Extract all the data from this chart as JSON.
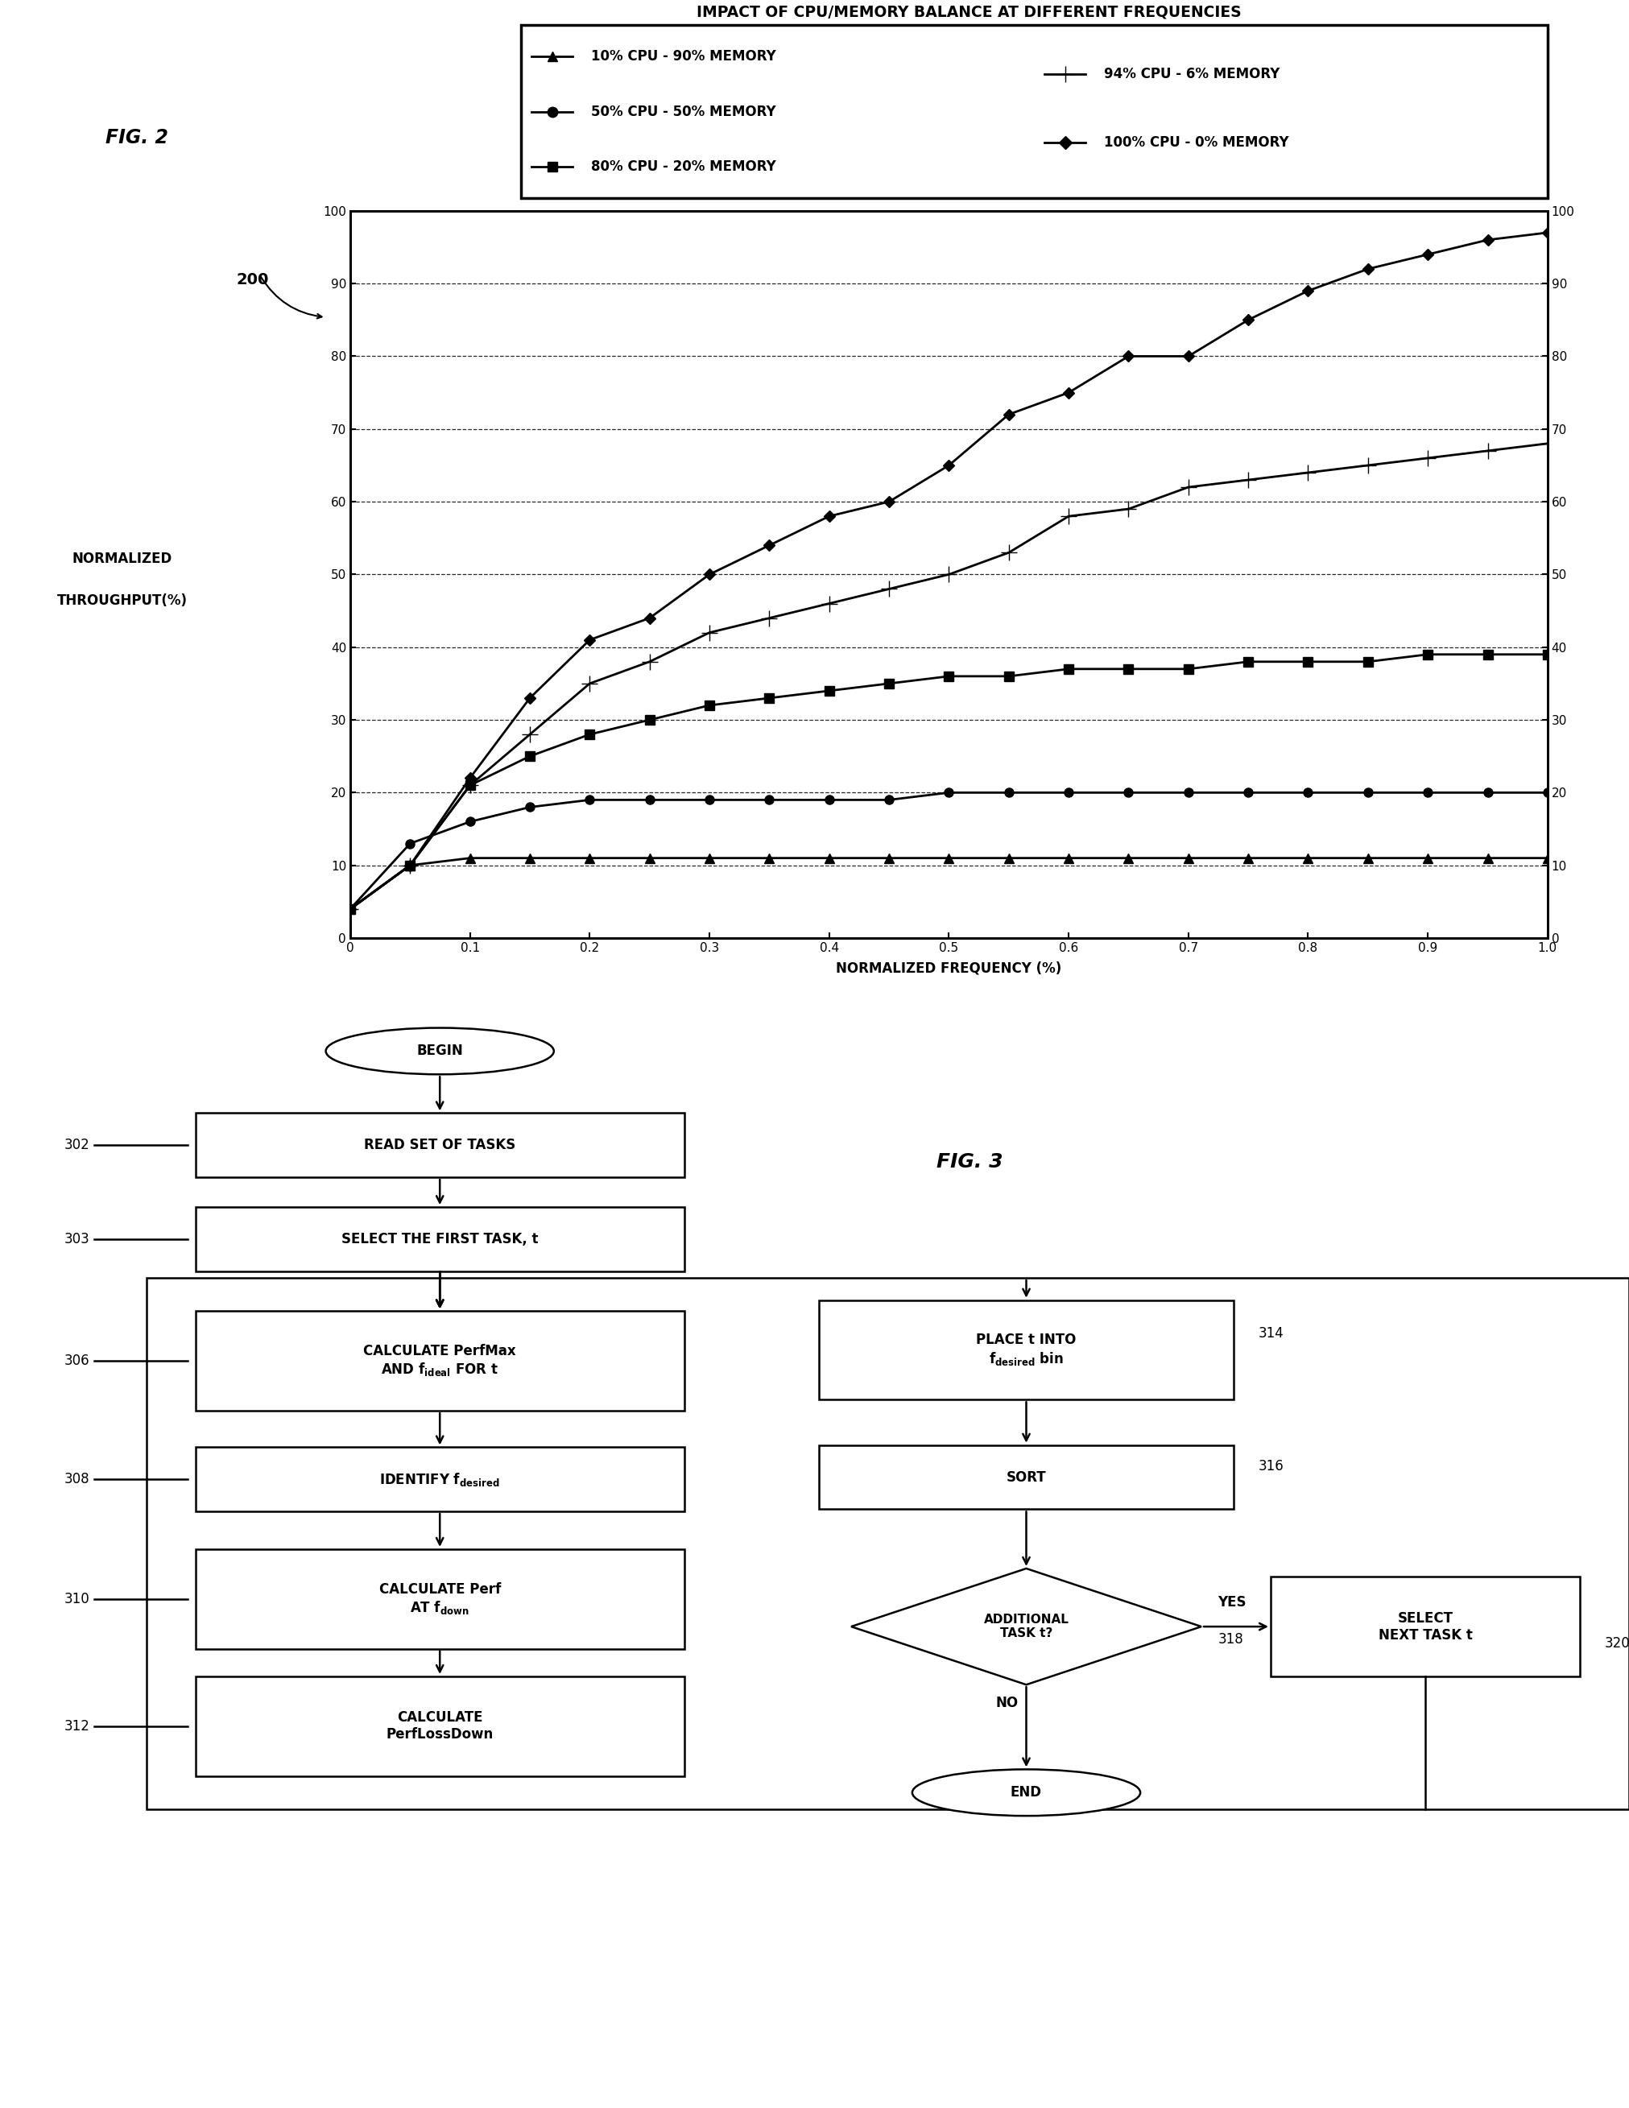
{
  "title": "IMPACT OF CPU/MEMORY BALANCE AT DIFFERENT FREQUENCIES",
  "xlabel": "NORMALIZED FREQUENCY (%)",
  "ylabel_top": "NORMALIZED",
  "ylabel_bot": "THROUGHPUT(%)",
  "xlim": [
    0,
    1.0
  ],
  "ylim": [
    0,
    100
  ],
  "xticks": [
    0,
    0.1,
    0.2,
    0.3,
    0.4,
    0.5,
    0.6,
    0.7,
    0.8,
    0.9,
    1.0
  ],
  "yticks": [
    0,
    10,
    20,
    30,
    40,
    50,
    60,
    70,
    80,
    90,
    100
  ],
  "series": [
    {
      "label": "10% CPU - 90% MEMORY",
      "marker": "^",
      "x": [
        0,
        0.05,
        0.1,
        0.15,
        0.2,
        0.25,
        0.3,
        0.35,
        0.4,
        0.45,
        0.5,
        0.55,
        0.6,
        0.65,
        0.7,
        0.75,
        0.8,
        0.85,
        0.9,
        0.95,
        1.0
      ],
      "y": [
        4,
        10,
        11,
        11,
        11,
        11,
        11,
        11,
        11,
        11,
        11,
        11,
        11,
        11,
        11,
        11,
        11,
        11,
        11,
        11,
        11
      ]
    },
    {
      "label": "50% CPU - 50% MEMORY",
      "marker": "o",
      "x": [
        0,
        0.05,
        0.1,
        0.15,
        0.2,
        0.25,
        0.3,
        0.35,
        0.4,
        0.45,
        0.5,
        0.55,
        0.6,
        0.65,
        0.7,
        0.75,
        0.8,
        0.85,
        0.9,
        0.95,
        1.0
      ],
      "y": [
        4,
        13,
        16,
        18,
        19,
        19,
        19,
        19,
        19,
        19,
        20,
        20,
        20,
        20,
        20,
        20,
        20,
        20,
        20,
        20,
        20
      ]
    },
    {
      "label": "80% CPU - 20% MEMORY",
      "marker": "s",
      "x": [
        0,
        0.05,
        0.1,
        0.15,
        0.2,
        0.25,
        0.3,
        0.35,
        0.4,
        0.45,
        0.5,
        0.55,
        0.6,
        0.65,
        0.7,
        0.75,
        0.8,
        0.85,
        0.9,
        0.95,
        1.0
      ],
      "y": [
        4,
        10,
        21,
        25,
        28,
        30,
        32,
        33,
        34,
        35,
        36,
        36,
        37,
        37,
        37,
        38,
        38,
        38,
        39,
        39,
        39
      ]
    },
    {
      "label": "94% CPU - 6% MEMORY",
      "marker": "+",
      "x": [
        0,
        0.05,
        0.1,
        0.15,
        0.2,
        0.25,
        0.3,
        0.35,
        0.4,
        0.45,
        0.5,
        0.55,
        0.6,
        0.65,
        0.7,
        0.75,
        0.8,
        0.85,
        0.9,
        0.95,
        1.0
      ],
      "y": [
        4,
        10,
        21,
        28,
        35,
        38,
        42,
        44,
        46,
        48,
        50,
        53,
        58,
        59,
        62,
        63,
        64,
        65,
        66,
        67,
        68
      ]
    },
    {
      "label": "100% CPU - 0% MEMORY",
      "marker": "D",
      "x": [
        0,
        0.05,
        0.1,
        0.15,
        0.2,
        0.25,
        0.3,
        0.35,
        0.4,
        0.45,
        0.5,
        0.55,
        0.6,
        0.65,
        0.7,
        0.75,
        0.8,
        0.85,
        0.9,
        0.95,
        1.0
      ],
      "y": [
        4,
        10,
        22,
        33,
        41,
        44,
        50,
        54,
        58,
        60,
        65,
        72,
        75,
        80,
        80,
        85,
        89,
        92,
        94,
        96,
        97
      ]
    }
  ],
  "fig2_label": "FIG. 2",
  "ref200": "200",
  "fig3_label": "FIG. 3",
  "legend_left": [
    {
      "marker": "^",
      "label": "10% CPU - 90% MEMORY"
    },
    {
      "marker": "o",
      "label": "50% CPU - 50% MEMORY"
    },
    {
      "marker": "s",
      "label": "80% CPU - 20% MEMORY"
    }
  ],
  "legend_right": [
    {
      "marker": "+",
      "label": "94% CPU - 6% MEMORY"
    },
    {
      "marker": "D",
      "label": "100% CPU - 0% MEMORY"
    }
  ]
}
